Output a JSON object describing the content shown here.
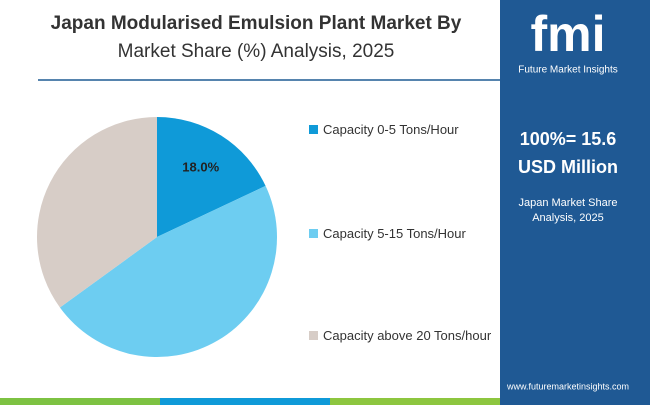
{
  "brand": {
    "logo": "fmi",
    "name": "Future Market Insights",
    "total_line1": "100%= 15.6",
    "total_line2": "USD Million",
    "caption": "Japan Market Share Analysis, 2025",
    "url": "www.futuremarketinsights.com"
  },
  "chart_data": {
    "type": "pie",
    "title": "Japan Modularised Emulsion Plant Market By",
    "subtitle": "Market Share (%) Analysis, 2025",
    "categories": [
      "Capacity 0-5 Tons/Hour",
      "Capacity 5-15 Tons/Hour",
      "Capacity above 20 Tons/hour"
    ],
    "values": [
      18,
      47,
      35
    ],
    "value_labels": [
      "18.0%",
      null,
      null
    ],
    "colors": [
      "#0f9ad8",
      "#6dcdf1",
      "#d7cdc7"
    ]
  }
}
